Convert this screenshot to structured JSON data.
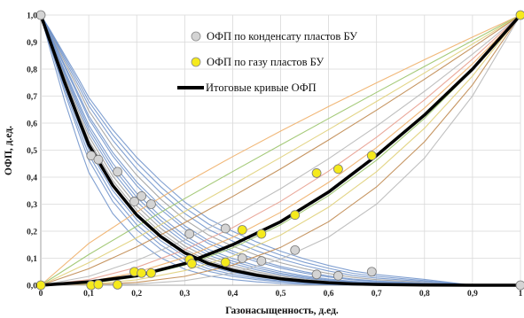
{
  "chart_data": {
    "type": "line",
    "title": "",
    "xlabel": "Газонасыщенность, д.ед.",
    "ylabel": "ОФП, д.ед.",
    "xlim": [
      0,
      1
    ],
    "ylim": [
      0,
      1
    ],
    "x_ticks": [
      "0",
      "0,1",
      "0,2",
      "0,3",
      "0,4",
      "0,5",
      "0,6",
      "0,7",
      "0,8",
      "0,9",
      "1"
    ],
    "y_ticks": [
      "0,0",
      "0,1",
      "0,2",
      "0,3",
      "0,4",
      "0,5",
      "0,6",
      "0,7",
      "0,8",
      "0,9",
      "1,0"
    ],
    "grid": true,
    "legend_position": "top-center",
    "legend": [
      {
        "label": "ОФП по конденсату пластов БУ",
        "marker": "circle",
        "color": "#d4d4d4"
      },
      {
        "label": "ОФП по газу пластов БУ",
        "marker": "circle",
        "color": "#f5ea1c"
      },
      {
        "label": "Итоговые кривые ОФП",
        "marker": "line",
        "color": "#000000"
      }
    ],
    "condensate_points": [
      {
        "x": 0.0,
        "y": 1.0
      },
      {
        "x": 0.105,
        "y": 0.48
      },
      {
        "x": 0.12,
        "y": 0.465
      },
      {
        "x": 0.16,
        "y": 0.42
      },
      {
        "x": 0.195,
        "y": 0.31
      },
      {
        "x": 0.21,
        "y": 0.33
      },
      {
        "x": 0.23,
        "y": 0.3
      },
      {
        "x": 0.31,
        "y": 0.19
      },
      {
        "x": 0.385,
        "y": 0.21
      },
      {
        "x": 0.42,
        "y": 0.1
      },
      {
        "x": 0.46,
        "y": 0.09
      },
      {
        "x": 0.53,
        "y": 0.13
      },
      {
        "x": 0.575,
        "y": 0.04
      },
      {
        "x": 0.62,
        "y": 0.035
      },
      {
        "x": 0.69,
        "y": 0.05
      },
      {
        "x": 1.0,
        "y": 0.0
      }
    ],
    "gas_points": [
      {
        "x": 0.0,
        "y": 0.0
      },
      {
        "x": 0.105,
        "y": 0.0
      },
      {
        "x": 0.12,
        "y": 0.003
      },
      {
        "x": 0.16,
        "y": 0.002
      },
      {
        "x": 0.195,
        "y": 0.05
      },
      {
        "x": 0.21,
        "y": 0.045
      },
      {
        "x": 0.23,
        "y": 0.045
      },
      {
        "x": 0.31,
        "y": 0.095
      },
      {
        "x": 0.315,
        "y": 0.08
      },
      {
        "x": 0.385,
        "y": 0.085
      },
      {
        "x": 0.42,
        "y": 0.205
      },
      {
        "x": 0.46,
        "y": 0.19
      },
      {
        "x": 0.53,
        "y": 0.26
      },
      {
        "x": 0.575,
        "y": 0.415
      },
      {
        "x": 0.62,
        "y": 0.43
      },
      {
        "x": 0.69,
        "y": 0.48
      },
      {
        "x": 1.0,
        "y": 1.0
      }
    ],
    "final_condensate_curve": {
      "x": [
        0.0,
        0.02,
        0.05,
        0.08,
        0.1,
        0.15,
        0.2,
        0.25,
        0.3,
        0.35,
        0.4,
        0.45,
        0.5,
        0.55,
        0.6,
        0.65,
        0.7,
        0.8,
        0.9,
        1.0
      ],
      "y": [
        1.0,
        0.9,
        0.75,
        0.61,
        0.52,
        0.37,
        0.26,
        0.18,
        0.12,
        0.08,
        0.055,
        0.037,
        0.024,
        0.015,
        0.009,
        0.005,
        0.003,
        0.001,
        0.0,
        0.0
      ]
    },
    "final_gas_curve": {
      "x": [
        0.0,
        0.1,
        0.2,
        0.3,
        0.4,
        0.5,
        0.6,
        0.7,
        0.8,
        0.9,
        1.0
      ],
      "y": [
        0.0,
        0.012,
        0.035,
        0.08,
        0.15,
        0.235,
        0.345,
        0.48,
        0.63,
        0.8,
        1.0
      ]
    }
  },
  "colors": {
    "condensate_marker": "#d4d4d4",
    "gas_marker": "#f5ea1c",
    "final_curve": "#000000",
    "condensate_curves": "#6b8fc9",
    "gas_curves": [
      "#f0b06a",
      "#9bc46a",
      "#e0d07a",
      "#c08a50",
      "#b8b8b8",
      "#e8a090"
    ]
  }
}
